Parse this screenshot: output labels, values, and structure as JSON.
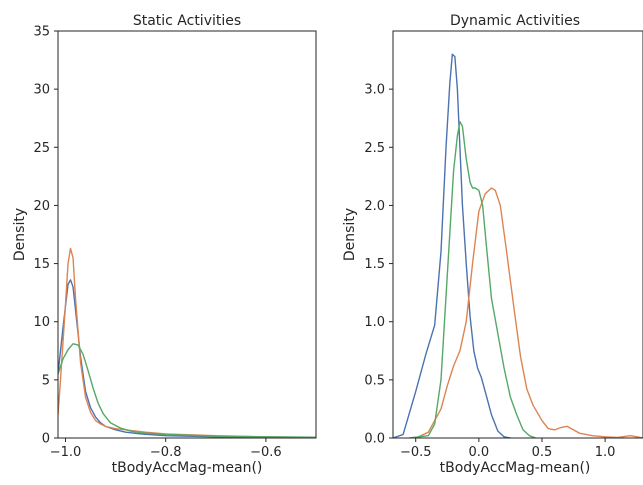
{
  "chart_data": [
    {
      "type": "line",
      "title": "Static Activities",
      "xlabel": "tBodyAccMag-mean()",
      "ylabel": "Density",
      "xlim": [
        -1.015,
        -0.5
      ],
      "ylim": [
        0,
        35
      ],
      "xticks": [
        -1.0,
        -0.8,
        -0.6
      ],
      "xtick_labels": [
        "−1.0",
        "−0.8",
        "−0.6"
      ],
      "yticks": [
        0,
        5,
        10,
        15,
        20,
        25,
        30,
        35
      ],
      "ytick_labels": [
        "0",
        "5",
        "10",
        "15",
        "20",
        "25",
        "30",
        "35"
      ],
      "grid": false,
      "legend": "none",
      "series": [
        {
          "color": "#4c72b0",
          "x": [
            -1.015,
            -1.005,
            -0.995,
            -0.99,
            -0.985,
            -0.98,
            -0.97,
            -0.96,
            -0.95,
            -0.94,
            -0.93,
            -0.92,
            -0.9,
            -0.88,
            -0.85,
            -0.8,
            -0.7,
            -0.6,
            -0.5
          ],
          "y": [
            5.5,
            9.5,
            13.2,
            13.6,
            13.0,
            11.0,
            7.0,
            4.0,
            2.6,
            1.8,
            1.3,
            1.0,
            0.7,
            0.5,
            0.35,
            0.2,
            0.1,
            0.05,
            0.03
          ]
        },
        {
          "color": "#dd8452",
          "x": [
            -1.015,
            -1.01,
            -1.0,
            -0.995,
            -0.99,
            -0.985,
            -0.98,
            -0.97,
            -0.96,
            -0.95,
            -0.94,
            -0.93,
            -0.92,
            -0.9,
            -0.88,
            -0.86,
            -0.84,
            -0.8,
            -0.7,
            -0.6,
            -0.5
          ],
          "y": [
            2.0,
            5.0,
            11.5,
            15.0,
            16.3,
            15.5,
            12.0,
            6.5,
            3.5,
            2.2,
            1.5,
            1.2,
            1.0,
            0.8,
            0.7,
            0.6,
            0.5,
            0.35,
            0.2,
            0.1,
            0.05
          ]
        },
        {
          "color": "#55a868",
          "x": [
            -1.015,
            -1.005,
            -0.995,
            -0.985,
            -0.975,
            -0.965,
            -0.955,
            -0.945,
            -0.935,
            -0.925,
            -0.91,
            -0.89,
            -0.87,
            -0.85,
            -0.8,
            -0.7,
            -0.6,
            -0.5
          ],
          "y": [
            5.5,
            6.8,
            7.6,
            8.1,
            8.0,
            7.2,
            5.8,
            4.3,
            3.0,
            2.1,
            1.3,
            0.85,
            0.6,
            0.45,
            0.3,
            0.15,
            0.1,
            0.07
          ]
        }
      ]
    },
    {
      "type": "line",
      "title": "Dynamic Activities",
      "xlabel": "tBodyAccMag-mean()",
      "ylabel": "Density",
      "xlim": [
        -0.68,
        1.3
      ],
      "ylim": [
        0,
        3.5
      ],
      "xticks": [
        -0.5,
        0.0,
        0.5,
        1.0
      ],
      "xtick_labels": [
        "−0.5",
        "0.0",
        "0.5",
        "1.0"
      ],
      "yticks": [
        0.0,
        0.5,
        1.0,
        1.5,
        2.0,
        2.5,
        3.0
      ],
      "ytick_labels": [
        "0.0",
        "0.5",
        "1.0",
        "1.5",
        "2.0",
        "2.5",
        "3.0"
      ],
      "grid": false,
      "legend": "none",
      "series": [
        {
          "color": "#4c72b0",
          "x": [
            -0.68,
            -0.6,
            -0.5,
            -0.42,
            -0.35,
            -0.3,
            -0.26,
            -0.23,
            -0.21,
            -0.19,
            -0.17,
            -0.15,
            -0.13,
            -0.1,
            -0.07,
            -0.04,
            -0.01,
            0.02,
            0.05,
            0.1,
            0.15,
            0.2,
            0.25
          ],
          "y": [
            0.0,
            0.03,
            0.4,
            0.72,
            0.97,
            1.6,
            2.5,
            3.05,
            3.3,
            3.28,
            3.0,
            2.5,
            2.0,
            1.5,
            1.05,
            0.75,
            0.6,
            0.52,
            0.4,
            0.2,
            0.06,
            0.01,
            0.0
          ]
        },
        {
          "color": "#dd8452",
          "x": [
            -0.5,
            -0.4,
            -0.3,
            -0.25,
            -0.2,
            -0.15,
            -0.1,
            -0.05,
            0.0,
            0.05,
            0.1,
            0.13,
            0.17,
            0.22,
            0.28,
            0.33,
            0.38,
            0.43,
            0.5,
            0.55,
            0.6,
            0.65,
            0.7,
            0.75,
            0.8,
            0.9,
            1.0,
            1.1,
            1.2,
            1.3
          ],
          "y": [
            0.0,
            0.05,
            0.25,
            0.45,
            0.62,
            0.75,
            1.0,
            1.5,
            1.95,
            2.1,
            2.15,
            2.13,
            2.0,
            1.6,
            1.1,
            0.7,
            0.42,
            0.28,
            0.15,
            0.08,
            0.07,
            0.09,
            0.1,
            0.07,
            0.04,
            0.02,
            0.01,
            0.005,
            0.02,
            0.0
          ]
        },
        {
          "color": "#55a868",
          "x": [
            -0.55,
            -0.4,
            -0.35,
            -0.3,
            -0.25,
            -0.2,
            -0.17,
            -0.15,
            -0.13,
            -0.1,
            -0.07,
            -0.05,
            -0.03,
            0.0,
            0.03,
            0.06,
            0.1,
            0.15,
            0.2,
            0.25,
            0.3,
            0.35,
            0.4,
            0.45
          ],
          "y": [
            0.0,
            0.02,
            0.12,
            0.5,
            1.4,
            2.3,
            2.6,
            2.72,
            2.68,
            2.4,
            2.2,
            2.15,
            2.15,
            2.13,
            2.0,
            1.65,
            1.2,
            0.9,
            0.6,
            0.35,
            0.2,
            0.07,
            0.02,
            0.0
          ]
        }
      ]
    }
  ]
}
